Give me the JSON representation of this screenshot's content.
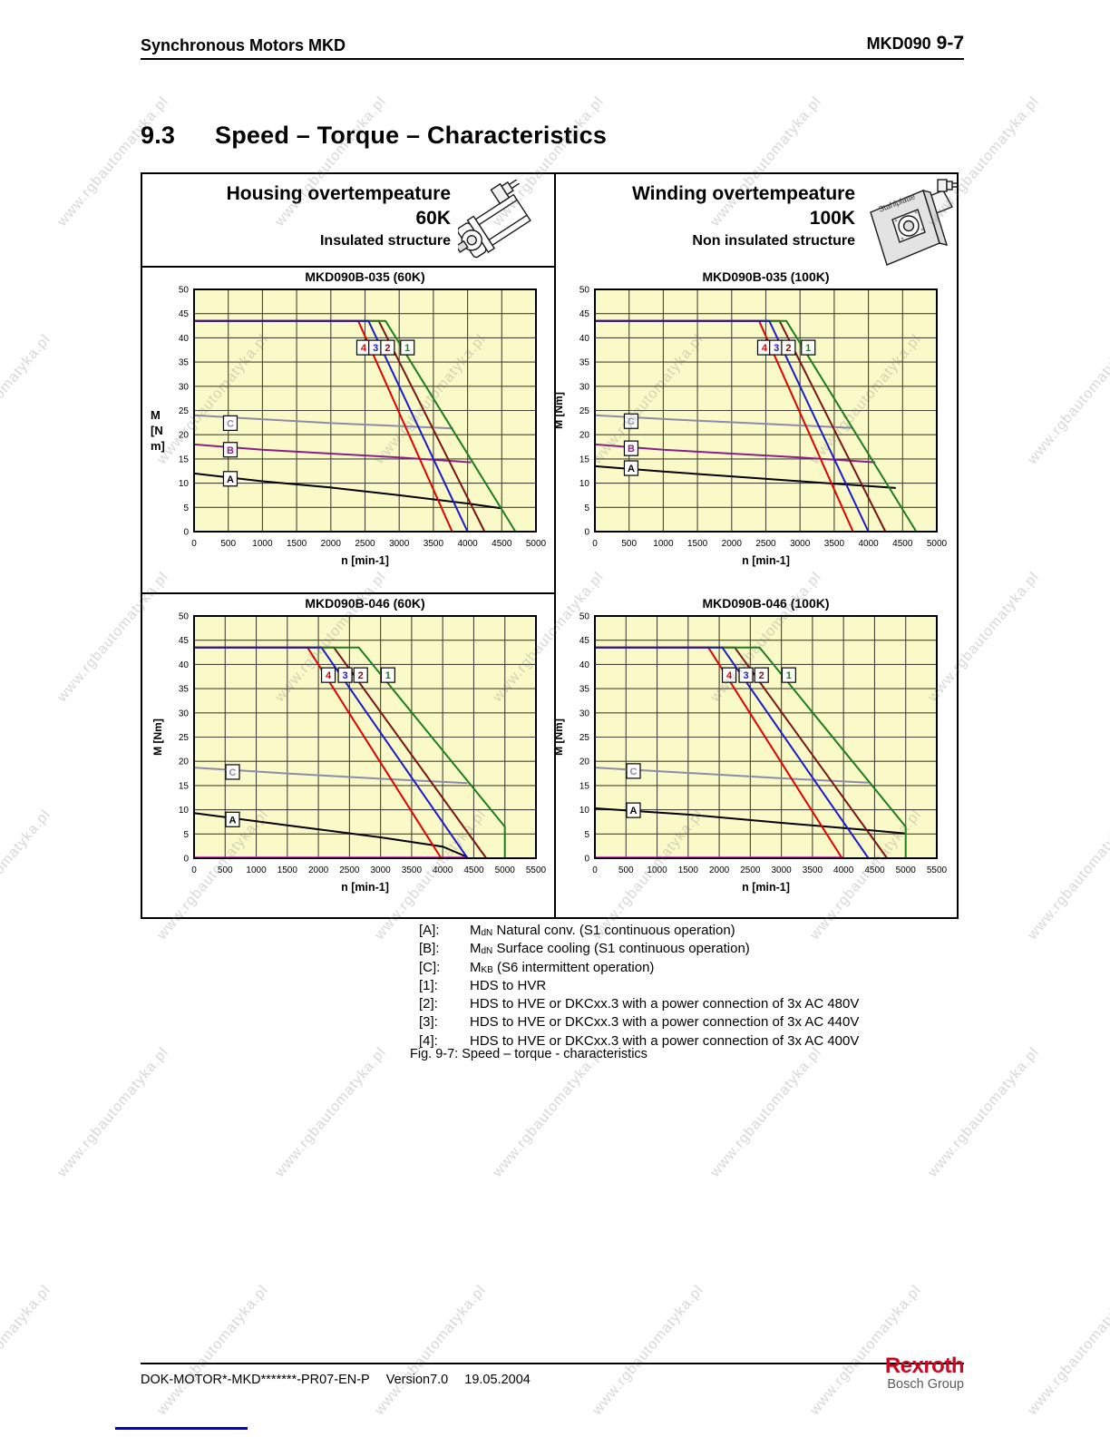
{
  "header": {
    "left": "Synchronous Motors MKD",
    "model": "MKD090",
    "page": "9-7"
  },
  "section": {
    "number": "9.3",
    "title": "Speed – Torque – Characteristics"
  },
  "panels": {
    "left": {
      "line1": "Housing overtempeature",
      "line2": "60K",
      "line3": "Insulated structure"
    },
    "right": {
      "line1": "Winding overtempeature",
      "line2": "100K",
      "line3": "Non insulated structure",
      "plate_label": "Stahlplatte"
    }
  },
  "colors": {
    "plot_bg": "#fafac8",
    "grid": "#44443c",
    "red": "#e10000",
    "blue": "#1a1ac8",
    "dark_red": "#7a1414",
    "green": "#1e7d1e",
    "slate": "#8c8caa",
    "purple": "#8a1f8a",
    "magenta": "#c816c8",
    "black": "#000000",
    "brand_red": "#cc0820",
    "brand_gray": "#5a5a5a",
    "link_blue": "#0000cc"
  },
  "chart_data": [
    {
      "type": "line",
      "title": "MKD090B-035 (60K)",
      "xlabel": "n [min-1]",
      "ylabel": "M [N m]",
      "ylabel_lines": [
        "M",
        "[N",
        "m]"
      ],
      "xmax": 5000,
      "xstep": 500,
      "ymax": 50,
      "ystep": 5,
      "series": [
        {
          "name": "C",
          "color_key": "slate",
          "points": [
            [
              0,
              24
            ],
            [
              1000,
              23.2
            ],
            [
              2000,
              22.4
            ],
            [
              3000,
              21.8
            ],
            [
              3790,
              21.3
            ]
          ]
        },
        {
          "name": "B",
          "color_key": "purple",
          "points": [
            [
              0,
              18
            ],
            [
              1000,
              16.9
            ],
            [
              2000,
              16.1
            ],
            [
              3000,
              15.3
            ],
            [
              4050,
              14.3
            ]
          ]
        },
        {
          "name": "A",
          "color_key": "black",
          "points": [
            [
              0,
              12
            ],
            [
              1000,
              10.4
            ],
            [
              2000,
              9.1
            ],
            [
              3000,
              7.5
            ],
            [
              4000,
              5.8
            ],
            [
              4500,
              4.8
            ]
          ]
        },
        {
          "name": "2",
          "color_key": "dark_red",
          "points": [
            [
              0,
              43.5
            ],
            [
              2700,
              43.5
            ],
            [
              4250,
              0
            ]
          ]
        },
        {
          "name": "1",
          "color_key": "green",
          "points": [
            [
              0,
              43.5
            ],
            [
              2800,
              43.5
            ],
            [
              4700,
              0
            ]
          ]
        },
        {
          "name": "4",
          "color_key": "red",
          "points": [
            [
              0,
              43.5
            ],
            [
              2400,
              43.5
            ],
            [
              3775,
              0
            ]
          ]
        },
        {
          "name": "3",
          "color_key": "blue",
          "points": [
            [
              0,
              43.5
            ],
            [
              2550,
              43.5
            ],
            [
              4000,
              0
            ],
            [
              4650,
              0
            ]
          ]
        }
      ],
      "labels": [
        {
          "text": "C",
          "color_key": "slate",
          "x": 530,
          "y": 22.4
        },
        {
          "text": "B",
          "color_key": "purple",
          "x": 530,
          "y": 16.9
        },
        {
          "text": "A",
          "color_key": "black",
          "x": 530,
          "y": 10.9
        },
        {
          "text": "4",
          "color_key": "red",
          "x": 2480,
          "y": 38
        },
        {
          "text": "3",
          "color_key": "blue",
          "x": 2655,
          "y": 38
        },
        {
          "text": "2",
          "color_key": "dark_red",
          "x": 2830,
          "y": 38
        },
        {
          "text": "1",
          "color_key": "green",
          "x": 3120,
          "y": 38
        }
      ]
    },
    {
      "type": "line",
      "title": "MKD090B-035 (100K)",
      "xlabel": "n [min-1]",
      "ylabel": "M [Nm]",
      "xmax": 5000,
      "xstep": 500,
      "ymax": 50,
      "ystep": 5,
      "series": [
        {
          "name": "C",
          "color_key": "slate",
          "points": [
            [
              0,
              24
            ],
            [
              1200,
              23.1
            ],
            [
              2400,
              22.3
            ],
            [
              3780,
              21.4
            ]
          ]
        },
        {
          "name": "B",
          "color_key": "purple",
          "points": [
            [
              0,
              18
            ],
            [
              1000,
              16.9
            ],
            [
              2000,
              16.1
            ],
            [
              3000,
              15.3
            ],
            [
              4100,
              14.3
            ]
          ]
        },
        {
          "name": "A",
          "color_key": "black",
          "points": [
            [
              0,
              13.5
            ],
            [
              1000,
              12.4
            ],
            [
              2000,
              11.4
            ],
            [
              3000,
              10.4
            ],
            [
              4400,
              9.0
            ]
          ]
        },
        {
          "name": "2",
          "color_key": "dark_red",
          "points": [
            [
              0,
              43.5
            ],
            [
              2700,
              43.5
            ],
            [
              4250,
              0
            ]
          ]
        },
        {
          "name": "1",
          "color_key": "green",
          "points": [
            [
              0,
              43.5
            ],
            [
              2800,
              43.5
            ],
            [
              4700,
              0
            ]
          ]
        },
        {
          "name": "4",
          "color_key": "red",
          "points": [
            [
              0,
              43.5
            ],
            [
              2400,
              43.5
            ],
            [
              3775,
              0
            ]
          ]
        },
        {
          "name": "3",
          "color_key": "blue",
          "points": [
            [
              0,
              43.5
            ],
            [
              2550,
              43.5
            ],
            [
              4000,
              0
            ],
            [
              4650,
              0
            ]
          ]
        }
      ],
      "labels": [
        {
          "text": "C",
          "color_key": "slate",
          "x": 530,
          "y": 22.8
        },
        {
          "text": "B",
          "color_key": "purple",
          "x": 530,
          "y": 17.2
        },
        {
          "text": "A",
          "color_key": "black",
          "x": 530,
          "y": 13.1
        },
        {
          "text": "4",
          "color_key": "red",
          "x": 2480,
          "y": 38
        },
        {
          "text": "3",
          "color_key": "blue",
          "x": 2655,
          "y": 38
        },
        {
          "text": "2",
          "color_key": "dark_red",
          "x": 2830,
          "y": 38
        },
        {
          "text": "1",
          "color_key": "green",
          "x": 3120,
          "y": 38
        }
      ]
    },
    {
      "type": "line",
      "title": "MKD090B-046 (60K)",
      "xlabel": "n [min-1]",
      "ylabel": "M [Nm]",
      "xmax": 5500,
      "xstep": 500,
      "ymax": 50,
      "ystep": 5,
      "series": [
        {
          "name": "C",
          "color_key": "slate",
          "points": [
            [
              0,
              18.7
            ],
            [
              1500,
              17.5
            ],
            [
              3000,
              16.4
            ],
            [
              4400,
              15.5
            ]
          ]
        },
        {
          "name": "A",
          "color_key": "black",
          "points": [
            [
              0,
              9.3
            ],
            [
              1500,
              6.8
            ],
            [
              3000,
              4.3
            ],
            [
              4000,
              2.4
            ],
            [
              4400,
              0.2
            ]
          ]
        },
        {
          "name": "B",
          "color_key": "magenta",
          "points": [
            [
              0,
              0.15
            ],
            [
              4400,
              0.15
            ]
          ]
        },
        {
          "name": "2",
          "color_key": "dark_red",
          "points": [
            [
              0,
              43.5
            ],
            [
              2250,
              43.5
            ],
            [
              4700,
              0
            ]
          ]
        },
        {
          "name": "1",
          "color_key": "green",
          "points": [
            [
              0,
              43.5
            ],
            [
              2650,
              43.5
            ],
            [
              5000,
              6.5
            ],
            [
              5000,
              0.1
            ]
          ]
        },
        {
          "name": "4",
          "color_key": "red",
          "points": [
            [
              0,
              43.5
            ],
            [
              1825,
              43.5
            ],
            [
              3975,
              0
            ]
          ]
        },
        {
          "name": "3",
          "color_key": "blue",
          "points": [
            [
              0,
              43.5
            ],
            [
              2050,
              43.5
            ],
            [
              4400,
              0
            ],
            [
              4750,
              0
            ]
          ]
        }
      ],
      "labels": [
        {
          "text": "C",
          "color_key": "slate",
          "x": 620,
          "y": 17.8
        },
        {
          "text": "A",
          "color_key": "black",
          "x": 620,
          "y": 8.0
        },
        {
          "text": "4",
          "color_key": "red",
          "x": 2160,
          "y": 37.8
        },
        {
          "text": "3",
          "color_key": "blue",
          "x": 2430,
          "y": 37.8
        },
        {
          "text": "2",
          "color_key": "dark_red",
          "x": 2680,
          "y": 37.8
        },
        {
          "text": "1",
          "color_key": "green",
          "x": 3120,
          "y": 37.8
        }
      ]
    },
    {
      "type": "line",
      "title": "MKD090B-046 (100K)",
      "xlabel": "n [min-1]",
      "ylabel": "M [Nm]",
      "xmax": 5500,
      "xstep": 500,
      "ymax": 50,
      "ystep": 5,
      "series": [
        {
          "name": "C",
          "color_key": "slate",
          "points": [
            [
              0,
              18.7
            ],
            [
              1500,
              17.6
            ],
            [
              3000,
              16.5
            ],
            [
              4400,
              15.6
            ]
          ]
        },
        {
          "name": "A",
          "color_key": "black",
          "points": [
            [
              0,
              10.3
            ],
            [
              1500,
              9.0
            ],
            [
              3000,
              7.3
            ],
            [
              4500,
              5.7
            ],
            [
              5000,
              5.1
            ]
          ]
        },
        {
          "name": "B",
          "color_key": "magenta",
          "points": [
            [
              0,
              0.15
            ],
            [
              4000,
              0.15
            ]
          ]
        },
        {
          "name": "2",
          "color_key": "dark_red",
          "points": [
            [
              0,
              43.5
            ],
            [
              2250,
              43.5
            ],
            [
              4700,
              0
            ]
          ]
        },
        {
          "name": "1",
          "color_key": "green",
          "points": [
            [
              0,
              43.5
            ],
            [
              2650,
              43.5
            ],
            [
              5000,
              6.5
            ],
            [
              5000,
              0.1
            ]
          ]
        },
        {
          "name": "4",
          "color_key": "red",
          "points": [
            [
              0,
              43.5
            ],
            [
              1825,
              43.5
            ],
            [
              3975,
              0
            ]
          ]
        },
        {
          "name": "3",
          "color_key": "blue",
          "points": [
            [
              0,
              43.5
            ],
            [
              2050,
              43.5
            ],
            [
              4400,
              0
            ],
            [
              4750,
              0
            ]
          ]
        }
      ],
      "labels": [
        {
          "text": "C",
          "color_key": "slate",
          "x": 620,
          "y": 18.0
        },
        {
          "text": "A",
          "color_key": "black",
          "x": 620,
          "y": 9.9
        },
        {
          "text": "4",
          "color_key": "red",
          "x": 2160,
          "y": 37.8
        },
        {
          "text": "3",
          "color_key": "blue",
          "x": 2430,
          "y": 37.8
        },
        {
          "text": "2",
          "color_key": "dark_red",
          "x": 2680,
          "y": 37.8
        },
        {
          "text": "1",
          "color_key": "green",
          "x": 3120,
          "y": 37.8
        }
      ]
    }
  ],
  "legend": {
    "items": [
      {
        "k": "[A]:",
        "pre": "M",
        "sub": "dN",
        "rest": " Natural conv. (S1 continuous operation)"
      },
      {
        "k": "[B]:",
        "pre": "M",
        "sub": "dN",
        "rest": " Surface cooling (S1 continuous operation)"
      },
      {
        "k": "[C]:",
        "pre": "M",
        "sub": "KB",
        "rest": " (S6 intermittent operation)"
      },
      {
        "k": "[1]:",
        "pre": "HDS to HVR",
        "sub": "",
        "rest": ""
      },
      {
        "k": "[2]:",
        "pre": "HDS to HVE or DKCxx.3 with a power connection of 3x AC 480V",
        "sub": "",
        "rest": ""
      },
      {
        "k": "[3]:",
        "pre": "HDS to HVE or DKCxx.3 with a power connection of 3x AC 440V",
        "sub": "",
        "rest": ""
      },
      {
        "k": "[4]:",
        "pre": "HDS to HVE or DKCxx.3 with a power connection of 3x AC 400V",
        "sub": "",
        "rest": ""
      }
    ],
    "caption": "Fig. 9-7: Speed – torque - characteristics"
  },
  "footer": {
    "doc": "DOK-MOTOR*-MKD*******-PR07-EN-P",
    "version": "Version7.0",
    "date": "19.05.2004",
    "brand": "Rexroth",
    "brand_sub": "Bosch Group"
  },
  "watermark": {
    "text": "www.rgbautomatyka.pl"
  }
}
